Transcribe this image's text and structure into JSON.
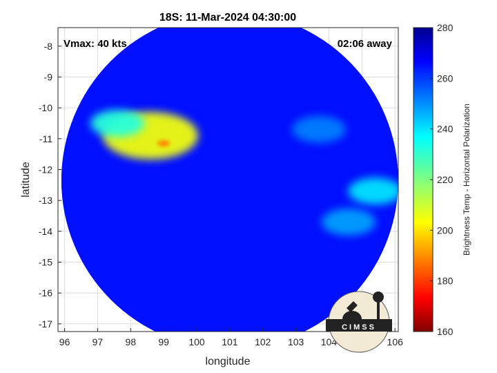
{
  "chart_data": {
    "type": "heatmap",
    "title": "18S: 11-Mar-2024 04:30:00",
    "xlabel": "longitude",
    "ylabel": "latitude",
    "xlim": [
      95.8,
      106.1
    ],
    "ylim": [
      -17.25,
      -7.4
    ],
    "x_ticks": [
      96,
      97,
      98,
      99,
      100,
      101,
      102,
      103,
      104,
      105,
      106
    ],
    "y_ticks": [
      -8,
      -9,
      -10,
      -11,
      -12,
      -13,
      -14,
      -15,
      -16,
      -17
    ],
    "grid": true,
    "annotations": {
      "vmax": "Vmax: 40 kts",
      "time_offset": "02:06 away"
    },
    "colorbar": {
      "label": "Brightness Temp - Horizontal Polarization",
      "min": 160,
      "max": 280,
      "ticks": [
        160,
        180,
        200,
        220,
        240,
        260,
        280
      ],
      "colormap": "jet"
    },
    "field": {
      "background_value": 265,
      "swath_center": [
        101.0,
        -12.35
      ],
      "swath_radius_deg": 5.1,
      "features": [
        {
          "lon": 98.6,
          "lat": -10.9,
          "value": 205
        },
        {
          "lon": 99.0,
          "lat": -11.15,
          "value": 188
        },
        {
          "lon": 97.6,
          "lat": -10.5,
          "value": 232
        },
        {
          "lon": 105.4,
          "lat": -12.7,
          "value": 240
        },
        {
          "lon": 104.6,
          "lat": -13.7,
          "value": 248
        },
        {
          "lon": 103.7,
          "lat": -10.7,
          "value": 252
        }
      ]
    }
  },
  "logo": {
    "text": "CIMSS"
  }
}
